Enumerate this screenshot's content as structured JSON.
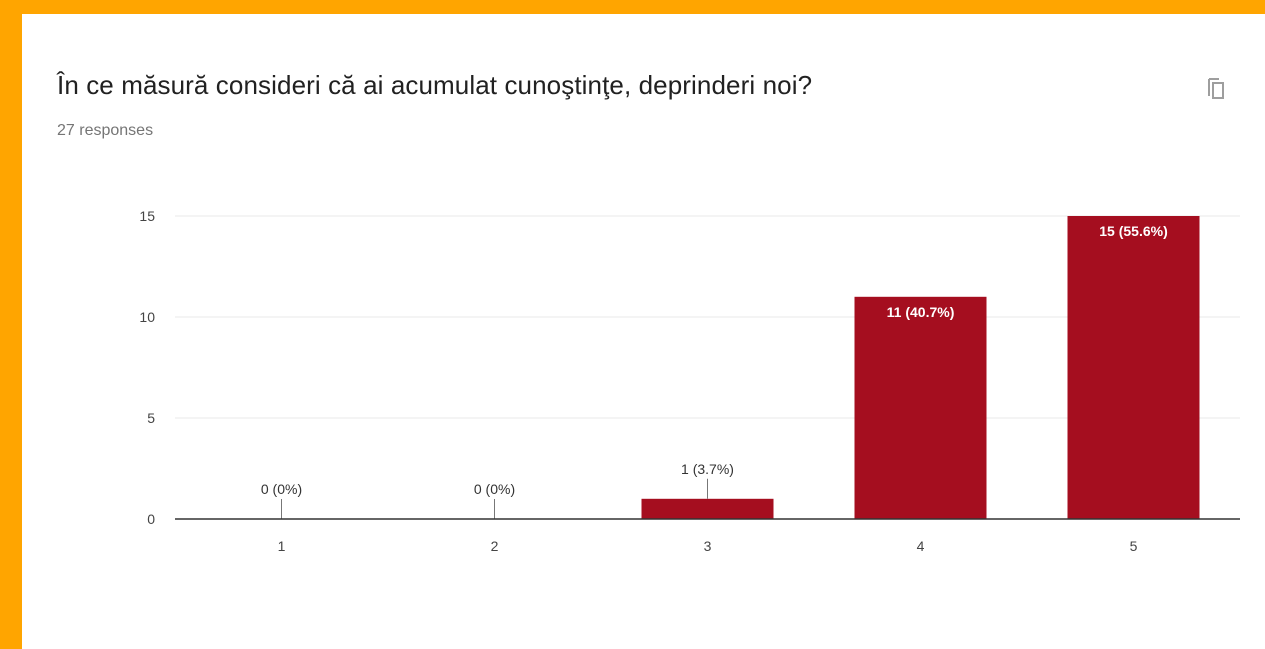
{
  "page": {
    "background_color": "#FFA500",
    "card_color": "#ffffff"
  },
  "question": {
    "title": "În ce măsură consideri că ai acumulat cunoştinţe, deprinderi noi?",
    "responses_label": "27 responses",
    "copy_icon": "copy-icon"
  },
  "chart_data": {
    "type": "bar",
    "categories": [
      "1",
      "2",
      "3",
      "4",
      "5"
    ],
    "values": [
      0,
      0,
      1,
      11,
      15
    ],
    "data_labels": [
      "0 (0%)",
      "0 (0%)",
      "1 (3.7%)",
      "11 (40.7%)",
      "15 (55.6%)"
    ],
    "ylim": [
      0,
      15
    ],
    "yticks": [
      0,
      5,
      10,
      15
    ],
    "grid": true,
    "bar_color": "#A50E1F",
    "title": "",
    "xlabel": "",
    "ylabel": ""
  }
}
